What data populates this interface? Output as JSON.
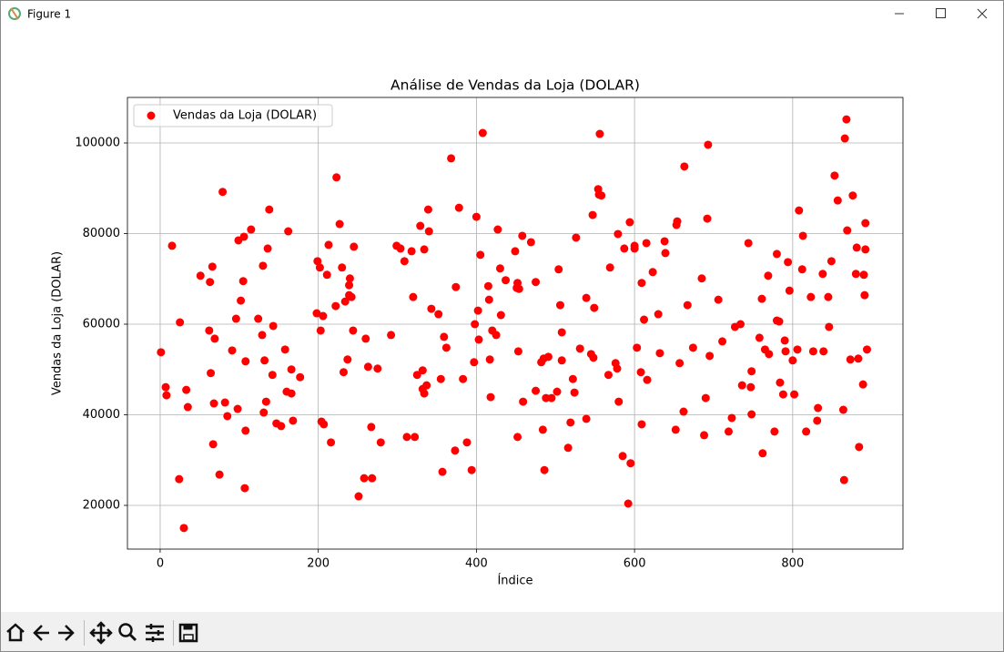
{
  "window": {
    "title": "Figure 1"
  },
  "chart_data": {
    "type": "scatter",
    "title": "Análise de Vendas da Loja (DOLAR)",
    "x_label": "Índice",
    "y_label": "Vendas da Loja (DOLAR)",
    "xlim": [
      -41.4,
      939.5
    ],
    "ylim": [
      10350,
      110050
    ],
    "xticks": [
      0,
      200,
      400,
      600,
      800
    ],
    "yticks": [
      20000,
      40000,
      60000,
      80000,
      100000
    ],
    "grid": true,
    "legend": "upper left",
    "series": [
      {
        "name": "Vendas da Loja (DOLAR)",
        "color": "red",
        "x": [
          1,
          7,
          8,
          15,
          24,
          25,
          30,
          33,
          35,
          51,
          62,
          63,
          64,
          66,
          67,
          68,
          69,
          75,
          79,
          82,
          85,
          91,
          96,
          98,
          99,
          102,
          105,
          106,
          107,
          108,
          108,
          115,
          124,
          129,
          130,
          131,
          132,
          134,
          136,
          138,
          142,
          143,
          147,
          153,
          158,
          160,
          162,
          166,
          166,
          168,
          177,
          198,
          199,
          202,
          203,
          204,
          206,
          207,
          211,
          213,
          216,
          222,
          223,
          227,
          230,
          232,
          234,
          237,
          239,
          239,
          240,
          242,
          245,
          244,
          251,
          258,
          260,
          263,
          267,
          268,
          275,
          279,
          292,
          299,
          304,
          309,
          312,
          318,
          320,
          322,
          325,
          329,
          332,
          334,
          332,
          334,
          337,
          339,
          340,
          343,
          352,
          355,
          357,
          359,
          362,
          368,
          373,
          374,
          378,
          383,
          388,
          394,
          397,
          398,
          400,
          402,
          403,
          405,
          408,
          415,
          416,
          417,
          418,
          420,
          425,
          427,
          430,
          431,
          437,
          449,
          451,
          452,
          453,
          452,
          454,
          458,
          459,
          469,
          475,
          475,
          482,
          485,
          484,
          486,
          488,
          491,
          495,
          502,
          504,
          506,
          508,
          508,
          516,
          519,
          522,
          524,
          526,
          531,
          539,
          539,
          545,
          547,
          548,
          549,
          554,
          555,
          556,
          558,
          567,
          569,
          576,
          578,
          579,
          580,
          585,
          587,
          594,
          595,
          592,
          600,
          600,
          603,
          608,
          609,
          609,
          612,
          615,
          616,
          623,
          630,
          632,
          638,
          639,
          652,
          653,
          654,
          657,
          662,
          663,
          667,
          674,
          685,
          688,
          690,
          692,
          693,
          695,
          706,
          711,
          719,
          723,
          727,
          734,
          736,
          744,
          747,
          748,
          748,
          758,
          761,
          762,
          765,
          769,
          770,
          777,
          780,
          780,
          783,
          784,
          788,
          790,
          791,
          794,
          796,
          800,
          802,
          806,
          808,
          812,
          813,
          817,
          823,
          826,
          832,
          831,
          838,
          839,
          845,
          846,
          849,
          853,
          857,
          864,
          865,
          866,
          868,
          869,
          873,
          876,
          880,
          881,
          884,
          883,
          889,
          890,
          891,
          892,
          892,
          894
        ],
        "values": [
          53800,
          46100,
          44300,
          77300,
          25800,
          60400,
          15000,
          45500,
          41700,
          70700,
          58600,
          69300,
          49200,
          72700,
          33500,
          42500,
          56800,
          26800,
          89200,
          42700,
          39700,
          54200,
          61200,
          41300,
          78500,
          65200,
          69500,
          79300,
          23800,
          51800,
          36500,
          80900,
          61200,
          57600,
          72900,
          40500,
          52000,
          42900,
          76700,
          85300,
          48800,
          59600,
          38100,
          37500,
          54400,
          45100,
          80500,
          44700,
          50000,
          38700,
          48300,
          62400,
          73900,
          72500,
          58600,
          38500,
          61800,
          37900,
          70900,
          77500,
          33900,
          64000,
          92400,
          82100,
          72500,
          49400,
          65000,
          52200,
          66400,
          68600,
          70100,
          66000,
          77100,
          58600,
          22000,
          26000,
          56800,
          50600,
          37300,
          26000,
          50200,
          33900,
          57600,
          77300,
          76700,
          73900,
          35100,
          76100,
          66000,
          35100,
          48800,
          81700,
          49800,
          76500,
          45700,
          44700,
          46500,
          85300,
          80500,
          63400,
          62200,
          47900,
          27400,
          57200,
          54800,
          96600,
          32100,
          68200,
          85700,
          47900,
          33900,
          27800,
          51600,
          60000,
          83700,
          63000,
          56600,
          75300,
          102200,
          68400,
          65400,
          52200,
          43900,
          58600,
          57600,
          80900,
          72300,
          62000,
          69700,
          76100,
          68000,
          35100,
          54000,
          69100,
          67800,
          79500,
          42900,
          78100,
          69300,
          45300,
          51600,
          52400,
          36700,
          27800,
          43700,
          52800,
          43700,
          45100,
          72100,
          64200,
          58200,
          52000,
          32700,
          38300,
          47900,
          44900,
          79100,
          54600,
          39100,
          65800,
          53400,
          84100,
          52600,
          63600,
          89800,
          88600,
          102000,
          88400,
          48800,
          72500,
          51400,
          50200,
          79900,
          42900,
          30900,
          76700,
          82500,
          29300,
          20400,
          77300,
          76700,
          54800,
          49400,
          69100,
          37900,
          61000,
          77900,
          47700,
          71500,
          62200,
          53600,
          78300,
          75700,
          36700,
          81900,
          82700,
          51400,
          40700,
          94800,
          64200,
          54800,
          70100,
          35500,
          43700,
          83300,
          99600,
          53000,
          65400,
          56200,
          36300,
          39300,
          59400,
          60000,
          46500,
          77900,
          46100,
          40100,
          49600,
          57000,
          65600,
          31500,
          54400,
          70700,
          53400,
          36300,
          75500,
          60800,
          60600,
          47100,
          44500,
          56400,
          54000,
          73700,
          67400,
          52000,
          44500,
          54400,
          85100,
          72100,
          79500,
          36300,
          66000,
          54000,
          41500,
          38700,
          71100,
          54000,
          66000,
          59400,
          73900,
          92800,
          87300,
          41100,
          25600,
          101000,
          105200,
          80700,
          52200,
          88400,
          71100,
          76900,
          32900,
          52400,
          46700,
          70900,
          66400,
          82300,
          76500,
          54400
        ]
      }
    ]
  }
}
